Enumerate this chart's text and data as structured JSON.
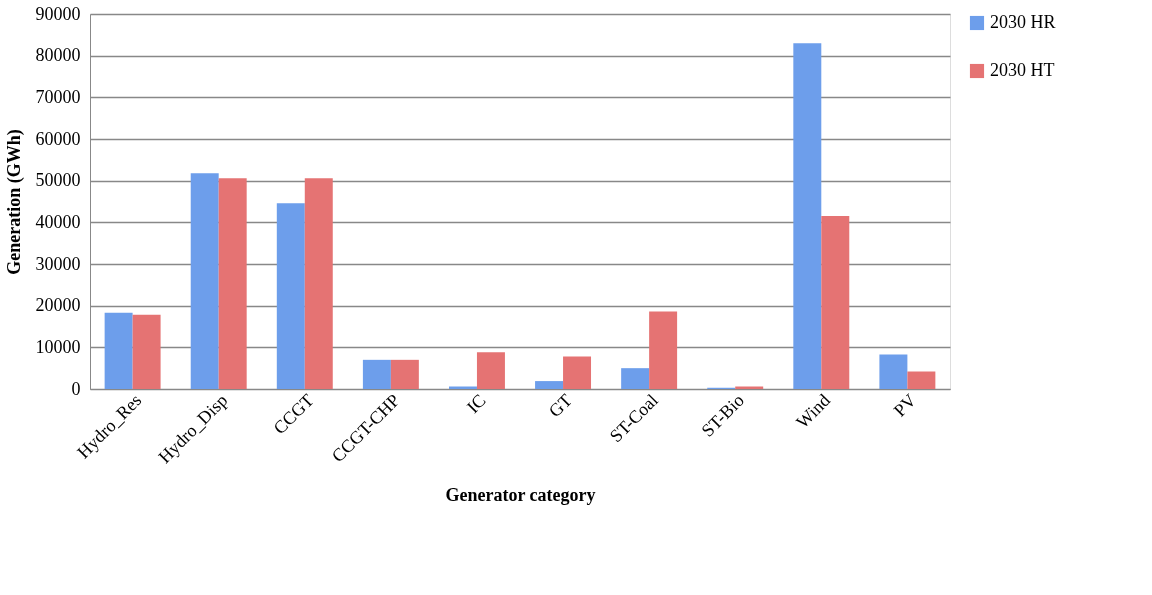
{
  "chart_data": {
    "type": "bar",
    "xlabel": "Generator category",
    "ylabel": "Generation (GWh)",
    "categories": [
      "Hydro_Res",
      "Hydro_Disp",
      "CCGT",
      "CCGT-CHP",
      "IC",
      "GT",
      "ST-Coal",
      "ST-Bio",
      "Wind",
      "PV"
    ],
    "series": [
      {
        "name": "2030 HR",
        "color": "#6d9eeb",
        "values": [
          18300,
          51800,
          44600,
          7000,
          600,
          1900,
          5000,
          300,
          83000,
          8300
        ]
      },
      {
        "name": "2030 HT",
        "color": "#e57373",
        "values": [
          17800,
          50600,
          50600,
          7000,
          8800,
          7800,
          18600,
          600,
          41500,
          4200
        ]
      }
    ],
    "ylim": [
      0,
      90000
    ],
    "yticks": [
      0,
      10000,
      20000,
      30000,
      40000,
      50000,
      60000,
      70000,
      80000,
      90000
    ],
    "grid": "y",
    "legend": "right"
  }
}
